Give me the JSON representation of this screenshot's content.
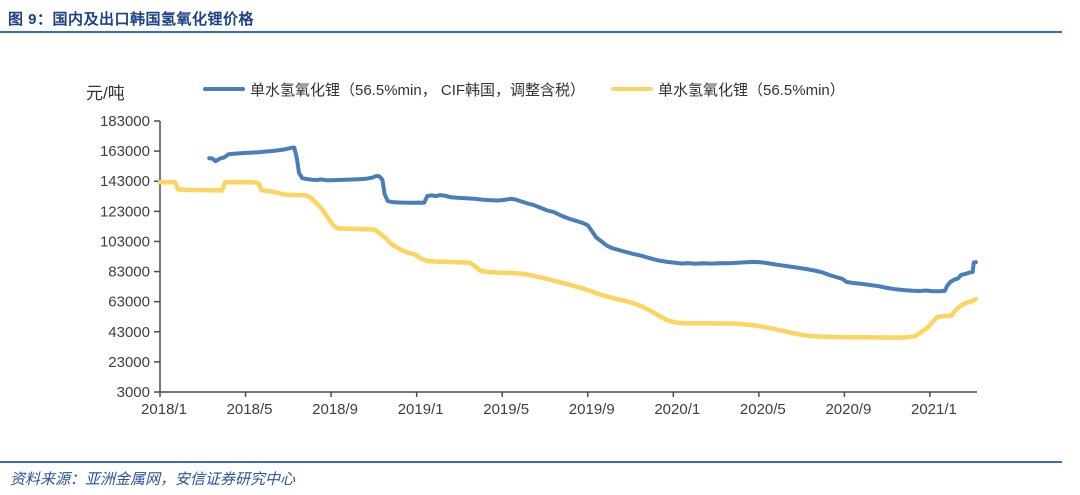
{
  "figure": {
    "title": "图 9：国内及出口韩国氢氧化锂价格",
    "source": "资料来源：亚洲金属网，安信证券研究中心"
  },
  "colors": {
    "title_text": "#1d4088",
    "rule_line": "#3a6db5",
    "source_text": "#2a52a0",
    "axis_line": "#4d4d4d",
    "tick_text": "#3f3f3f",
    "series_blue": "#4a7ebb",
    "series_yellow": "#fcd45f"
  },
  "chart_data": {
    "type": "line",
    "title": "国内及出口韩国氢氧化锂价格",
    "y_axis_unit": "元/吨",
    "legend_position": "top",
    "grid": false,
    "ylim": [
      3000,
      183000
    ],
    "y_ticks": [
      183000,
      163000,
      143000,
      123000,
      103000,
      83000,
      63000,
      43000,
      23000,
      3000
    ],
    "x_range_months": [
      0,
      38.2
    ],
    "x_tick_months": [
      0,
      4,
      8,
      12,
      16,
      20,
      24,
      28,
      32,
      36
    ],
    "x_tick_labels": [
      "2018/1",
      "2018/5",
      "2018/9",
      "2019/1",
      "2019/5",
      "2019/9",
      "2020/1",
      "2020/5",
      "2020/9",
      "2021/1"
    ],
    "series": [
      {
        "name": "单水氢氧化锂（56.5%min， CIF韩国，调整含税）",
        "color": "#4a7ebb",
        "width": 4,
        "points": [
          [
            2.3,
            158300
          ],
          [
            2.45,
            158100
          ],
          [
            2.6,
            156300
          ],
          [
            2.8,
            158000
          ],
          [
            3.0,
            158800
          ],
          [
            3.2,
            160900
          ],
          [
            3.45,
            161200
          ],
          [
            3.7,
            161500
          ],
          [
            4.0,
            161800
          ],
          [
            4.3,
            162000
          ],
          [
            4.6,
            162300
          ],
          [
            4.9,
            162700
          ],
          [
            5.2,
            163000
          ],
          [
            5.5,
            163500
          ],
          [
            5.8,
            164100
          ],
          [
            6.0,
            164700
          ],
          [
            6.15,
            165200
          ],
          [
            6.28,
            165300
          ],
          [
            6.4,
            158000
          ],
          [
            6.5,
            148500
          ],
          [
            6.65,
            145000
          ],
          [
            6.85,
            144500
          ],
          [
            7.1,
            144000
          ],
          [
            7.35,
            143800
          ],
          [
            7.55,
            144200
          ],
          [
            7.75,
            143700
          ],
          [
            8.05,
            143600
          ],
          [
            8.45,
            143900
          ],
          [
            8.85,
            144100
          ],
          [
            9.25,
            144300
          ],
          [
            9.65,
            144700
          ],
          [
            9.95,
            145500
          ],
          [
            10.1,
            146500
          ],
          [
            10.25,
            146300
          ],
          [
            10.4,
            144000
          ],
          [
            10.5,
            134500
          ],
          [
            10.65,
            129700
          ],
          [
            10.95,
            129000
          ],
          [
            11.35,
            128800
          ],
          [
            11.75,
            128700
          ],
          [
            12.1,
            128800
          ],
          [
            12.35,
            128700
          ],
          [
            12.5,
            133200
          ],
          [
            12.7,
            133600
          ],
          [
            12.9,
            133100
          ],
          [
            13.1,
            133800
          ],
          [
            13.35,
            133300
          ],
          [
            13.6,
            132300
          ],
          [
            13.9,
            132000
          ],
          [
            14.3,
            131700
          ],
          [
            14.7,
            131300
          ],
          [
            15.1,
            130700
          ],
          [
            15.5,
            130400
          ],
          [
            15.8,
            130200
          ],
          [
            16.1,
            130600
          ],
          [
            16.4,
            131300
          ],
          [
            16.6,
            130900
          ],
          [
            16.9,
            129500
          ],
          [
            17.2,
            128200
          ],
          [
            17.5,
            127100
          ],
          [
            17.8,
            125300
          ],
          [
            18.1,
            123600
          ],
          [
            18.4,
            122600
          ],
          [
            18.6,
            121200
          ],
          [
            18.85,
            119600
          ],
          [
            19.15,
            118000
          ],
          [
            19.45,
            116700
          ],
          [
            19.75,
            115400
          ],
          [
            20.0,
            113800
          ],
          [
            20.2,
            109800
          ],
          [
            20.4,
            105600
          ],
          [
            20.65,
            102900
          ],
          [
            20.9,
            100200
          ],
          [
            21.15,
            98500
          ],
          [
            21.45,
            97300
          ],
          [
            21.75,
            96100
          ],
          [
            22.1,
            94800
          ],
          [
            22.5,
            93500
          ],
          [
            22.9,
            91900
          ],
          [
            23.3,
            90400
          ],
          [
            23.7,
            89400
          ],
          [
            24.1,
            88800
          ],
          [
            24.4,
            88300
          ],
          [
            24.7,
            88600
          ],
          [
            25.0,
            88200
          ],
          [
            25.4,
            88500
          ],
          [
            25.8,
            88300
          ],
          [
            26.2,
            88600
          ],
          [
            26.6,
            88500
          ],
          [
            27.0,
            88900
          ],
          [
            27.4,
            89200
          ],
          [
            27.8,
            89400
          ],
          [
            28.2,
            89000
          ],
          [
            28.6,
            88100
          ],
          [
            29.0,
            87200
          ],
          [
            29.4,
            86400
          ],
          [
            29.8,
            85600
          ],
          [
            30.2,
            84700
          ],
          [
            30.6,
            83700
          ],
          [
            31.0,
            82300
          ],
          [
            31.3,
            80700
          ],
          [
            31.6,
            79400
          ],
          [
            31.9,
            78200
          ],
          [
            32.1,
            76100
          ],
          [
            32.4,
            75400
          ],
          [
            32.8,
            74800
          ],
          [
            33.2,
            74100
          ],
          [
            33.6,
            73300
          ],
          [
            34.0,
            72100
          ],
          [
            34.4,
            71200
          ],
          [
            34.8,
            70700
          ],
          [
            35.2,
            70300
          ],
          [
            35.5,
            70100
          ],
          [
            35.8,
            70400
          ],
          [
            36.1,
            70000
          ],
          [
            36.45,
            69900
          ],
          [
            36.7,
            70200
          ],
          [
            36.8,
            73500
          ],
          [
            36.95,
            76000
          ],
          [
            37.15,
            77800
          ],
          [
            37.3,
            78300
          ],
          [
            37.45,
            80700
          ],
          [
            37.65,
            81400
          ],
          [
            37.85,
            82400
          ],
          [
            38.0,
            82800
          ],
          [
            38.05,
            89000
          ],
          [
            38.15,
            89200
          ]
        ]
      },
      {
        "name": "单水氢氧化锂（56.5%min）",
        "color": "#fcd45f",
        "width": 4.5,
        "points": [
          [
            0,
            142300
          ],
          [
            0.7,
            142300
          ],
          [
            0.85,
            137500
          ],
          [
            1.4,
            137200
          ],
          [
            2.2,
            137000
          ],
          [
            2.9,
            136900
          ],
          [
            3.05,
            142300
          ],
          [
            3.7,
            142400
          ],
          [
            4.4,
            142200
          ],
          [
            4.6,
            141700
          ],
          [
            4.75,
            137000
          ],
          [
            5.2,
            136200
          ],
          [
            5.45,
            135400
          ],
          [
            5.8,
            134200
          ],
          [
            6.2,
            133900
          ],
          [
            6.85,
            133600
          ],
          [
            7.1,
            131500
          ],
          [
            7.3,
            128500
          ],
          [
            7.5,
            125800
          ],
          [
            7.7,
            121800
          ],
          [
            7.9,
            117800
          ],
          [
            8.1,
            113800
          ],
          [
            8.3,
            111700
          ],
          [
            8.9,
            111400
          ],
          [
            9.5,
            111100
          ],
          [
            10.05,
            110900
          ],
          [
            10.3,
            108100
          ],
          [
            10.55,
            105200
          ],
          [
            10.8,
            101500
          ],
          [
            11.1,
            98800
          ],
          [
            11.4,
            96500
          ],
          [
            11.7,
            95100
          ],
          [
            11.95,
            94200
          ],
          [
            12.2,
            91600
          ],
          [
            12.5,
            90000
          ],
          [
            12.85,
            89700
          ],
          [
            13.45,
            89400
          ],
          [
            14.05,
            89100
          ],
          [
            14.5,
            88900
          ],
          [
            14.75,
            86200
          ],
          [
            15.0,
            83400
          ],
          [
            15.35,
            82700
          ],
          [
            15.85,
            82300
          ],
          [
            16.45,
            82100
          ],
          [
            16.95,
            81600
          ],
          [
            17.35,
            80500
          ],
          [
            17.75,
            79200
          ],
          [
            18.15,
            77900
          ],
          [
            18.55,
            76300
          ],
          [
            18.95,
            75000
          ],
          [
            19.35,
            73500
          ],
          [
            19.75,
            71800
          ],
          [
            20.15,
            70000
          ],
          [
            20.55,
            67900
          ],
          [
            20.95,
            66200
          ],
          [
            21.35,
            64800
          ],
          [
            21.75,
            63500
          ],
          [
            22.15,
            61900
          ],
          [
            22.55,
            59700
          ],
          [
            22.95,
            56900
          ],
          [
            23.35,
            53400
          ],
          [
            23.75,
            50400
          ],
          [
            24.15,
            49000
          ],
          [
            24.65,
            48700
          ],
          [
            25.35,
            48600
          ],
          [
            26.15,
            48500
          ],
          [
            26.95,
            48400
          ],
          [
            27.55,
            47600
          ],
          [
            28.05,
            46700
          ],
          [
            28.55,
            45300
          ],
          [
            29.05,
            43900
          ],
          [
            29.55,
            42200
          ],
          [
            30.05,
            40800
          ],
          [
            30.55,
            40000
          ],
          [
            31.25,
            39600
          ],
          [
            32.05,
            39400
          ],
          [
            32.85,
            39300
          ],
          [
            33.65,
            39200
          ],
          [
            34.45,
            39100
          ],
          [
            34.95,
            39300
          ],
          [
            35.3,
            40100
          ],
          [
            35.6,
            42800
          ],
          [
            35.9,
            46000
          ],
          [
            36.15,
            50000
          ],
          [
            36.35,
            52800
          ],
          [
            36.6,
            53400
          ],
          [
            37.0,
            53600
          ],
          [
            37.2,
            57300
          ],
          [
            37.45,
            60400
          ],
          [
            37.7,
            62300
          ],
          [
            38.0,
            63400
          ],
          [
            38.15,
            64800
          ]
        ]
      }
    ]
  }
}
